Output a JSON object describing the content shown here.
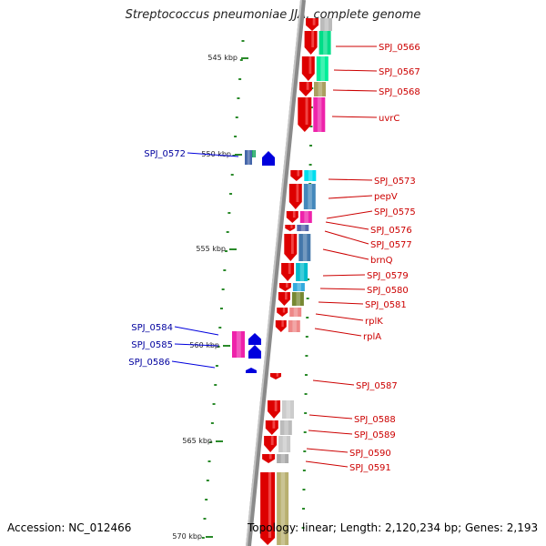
{
  "title": "Streptococcus pneumoniae JJA, complete genome",
  "footer": {
    "accession": "Accession: NC_012466",
    "topology": "Topology: linear; Length: 2,120,234 bp; Genes: 2,193"
  },
  "scale_labels": [
    "545 kbp",
    "550 kbp",
    "555 kbp",
    "560 kbp",
    "565 kbp",
    "570 kbp"
  ],
  "colors": {
    "forward_strand": "#dd0000",
    "reverse_strand": "#0000dd",
    "forward_label": "#cc0000",
    "reverse_label": "#00009e",
    "backbone": "#8a8a8a",
    "tick": "#2a8a2a"
  },
  "genes_right": [
    "SPJ_0566",
    "SPJ_0567",
    "SPJ_0568",
    "uvrC",
    "SPJ_0573",
    "pepV",
    "SPJ_0575",
    "SPJ_0576",
    "SPJ_0577",
    "brnQ",
    "SPJ_0579",
    "SPJ_0580",
    "SPJ_0581",
    "rplK",
    "rplA",
    "SPJ_0587",
    "SPJ_0588",
    "SPJ_0589",
    "SPJ_0590",
    "SPJ_0591"
  ],
  "genes_left": [
    "SPJ_0572",
    "SPJ_0584",
    "SPJ_0585",
    "SPJ_0586"
  ]
}
